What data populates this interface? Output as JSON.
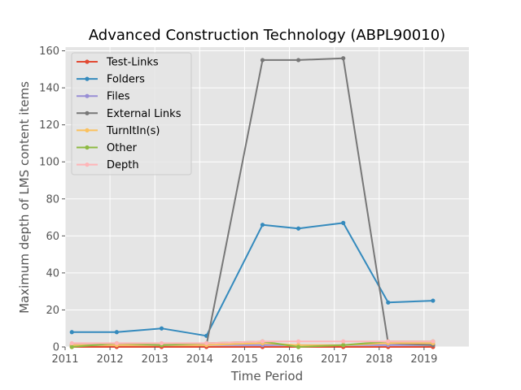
{
  "chart_data": {
    "type": "line",
    "title": "Advanced Construction Technology (ABPL90010)",
    "xlabel": "Time Period",
    "ylabel": "Maximum depth of LMS content items",
    "xlim": [
      2011,
      2020
    ],
    "ylim": [
      0,
      162
    ],
    "xticks": [
      "2011",
      "2012",
      "2013",
      "2014",
      "2015",
      "2016",
      "2017",
      "2018",
      "2019"
    ],
    "yticks": [
      "0",
      "20",
      "40",
      "60",
      "80",
      "100",
      "120",
      "140",
      "160"
    ],
    "grid": true,
    "legend_position": "upper-left",
    "x": [
      2011.15,
      2012.15,
      2013.15,
      2014.15,
      2015.4,
      2016.2,
      2017.2,
      2018.2,
      2019.2
    ],
    "series": [
      {
        "name": "Test-Links",
        "color": "#E24A33",
        "values": [
          0,
          0,
          0,
          0,
          0,
          0,
          0,
          0,
          0
        ]
      },
      {
        "name": "Folders",
        "color": "#348ABD",
        "values": [
          8,
          8,
          10,
          6,
          66,
          64,
          67,
          24,
          25
        ]
      },
      {
        "name": "Files",
        "color": "#988ED5",
        "values": [
          1,
          1,
          1,
          1,
          1,
          1,
          1,
          1,
          1
        ]
      },
      {
        "name": "External Links",
        "color": "#777777",
        "values": [
          1,
          1,
          1,
          1,
          155,
          155,
          156,
          2,
          1
        ]
      },
      {
        "name": "TurnItIn(s)",
        "color": "#FBC15E",
        "values": [
          1,
          1,
          1,
          1,
          2,
          1,
          1,
          2,
          2
        ]
      },
      {
        "name": "Other",
        "color": "#8EBA42",
        "values": [
          0,
          2,
          1,
          2,
          3,
          0,
          1,
          3,
          3
        ]
      },
      {
        "name": "Depth",
        "color": "#FFB5B8",
        "values": [
          2,
          2,
          2,
          2,
          3,
          3,
          3,
          3,
          3
        ]
      }
    ]
  }
}
